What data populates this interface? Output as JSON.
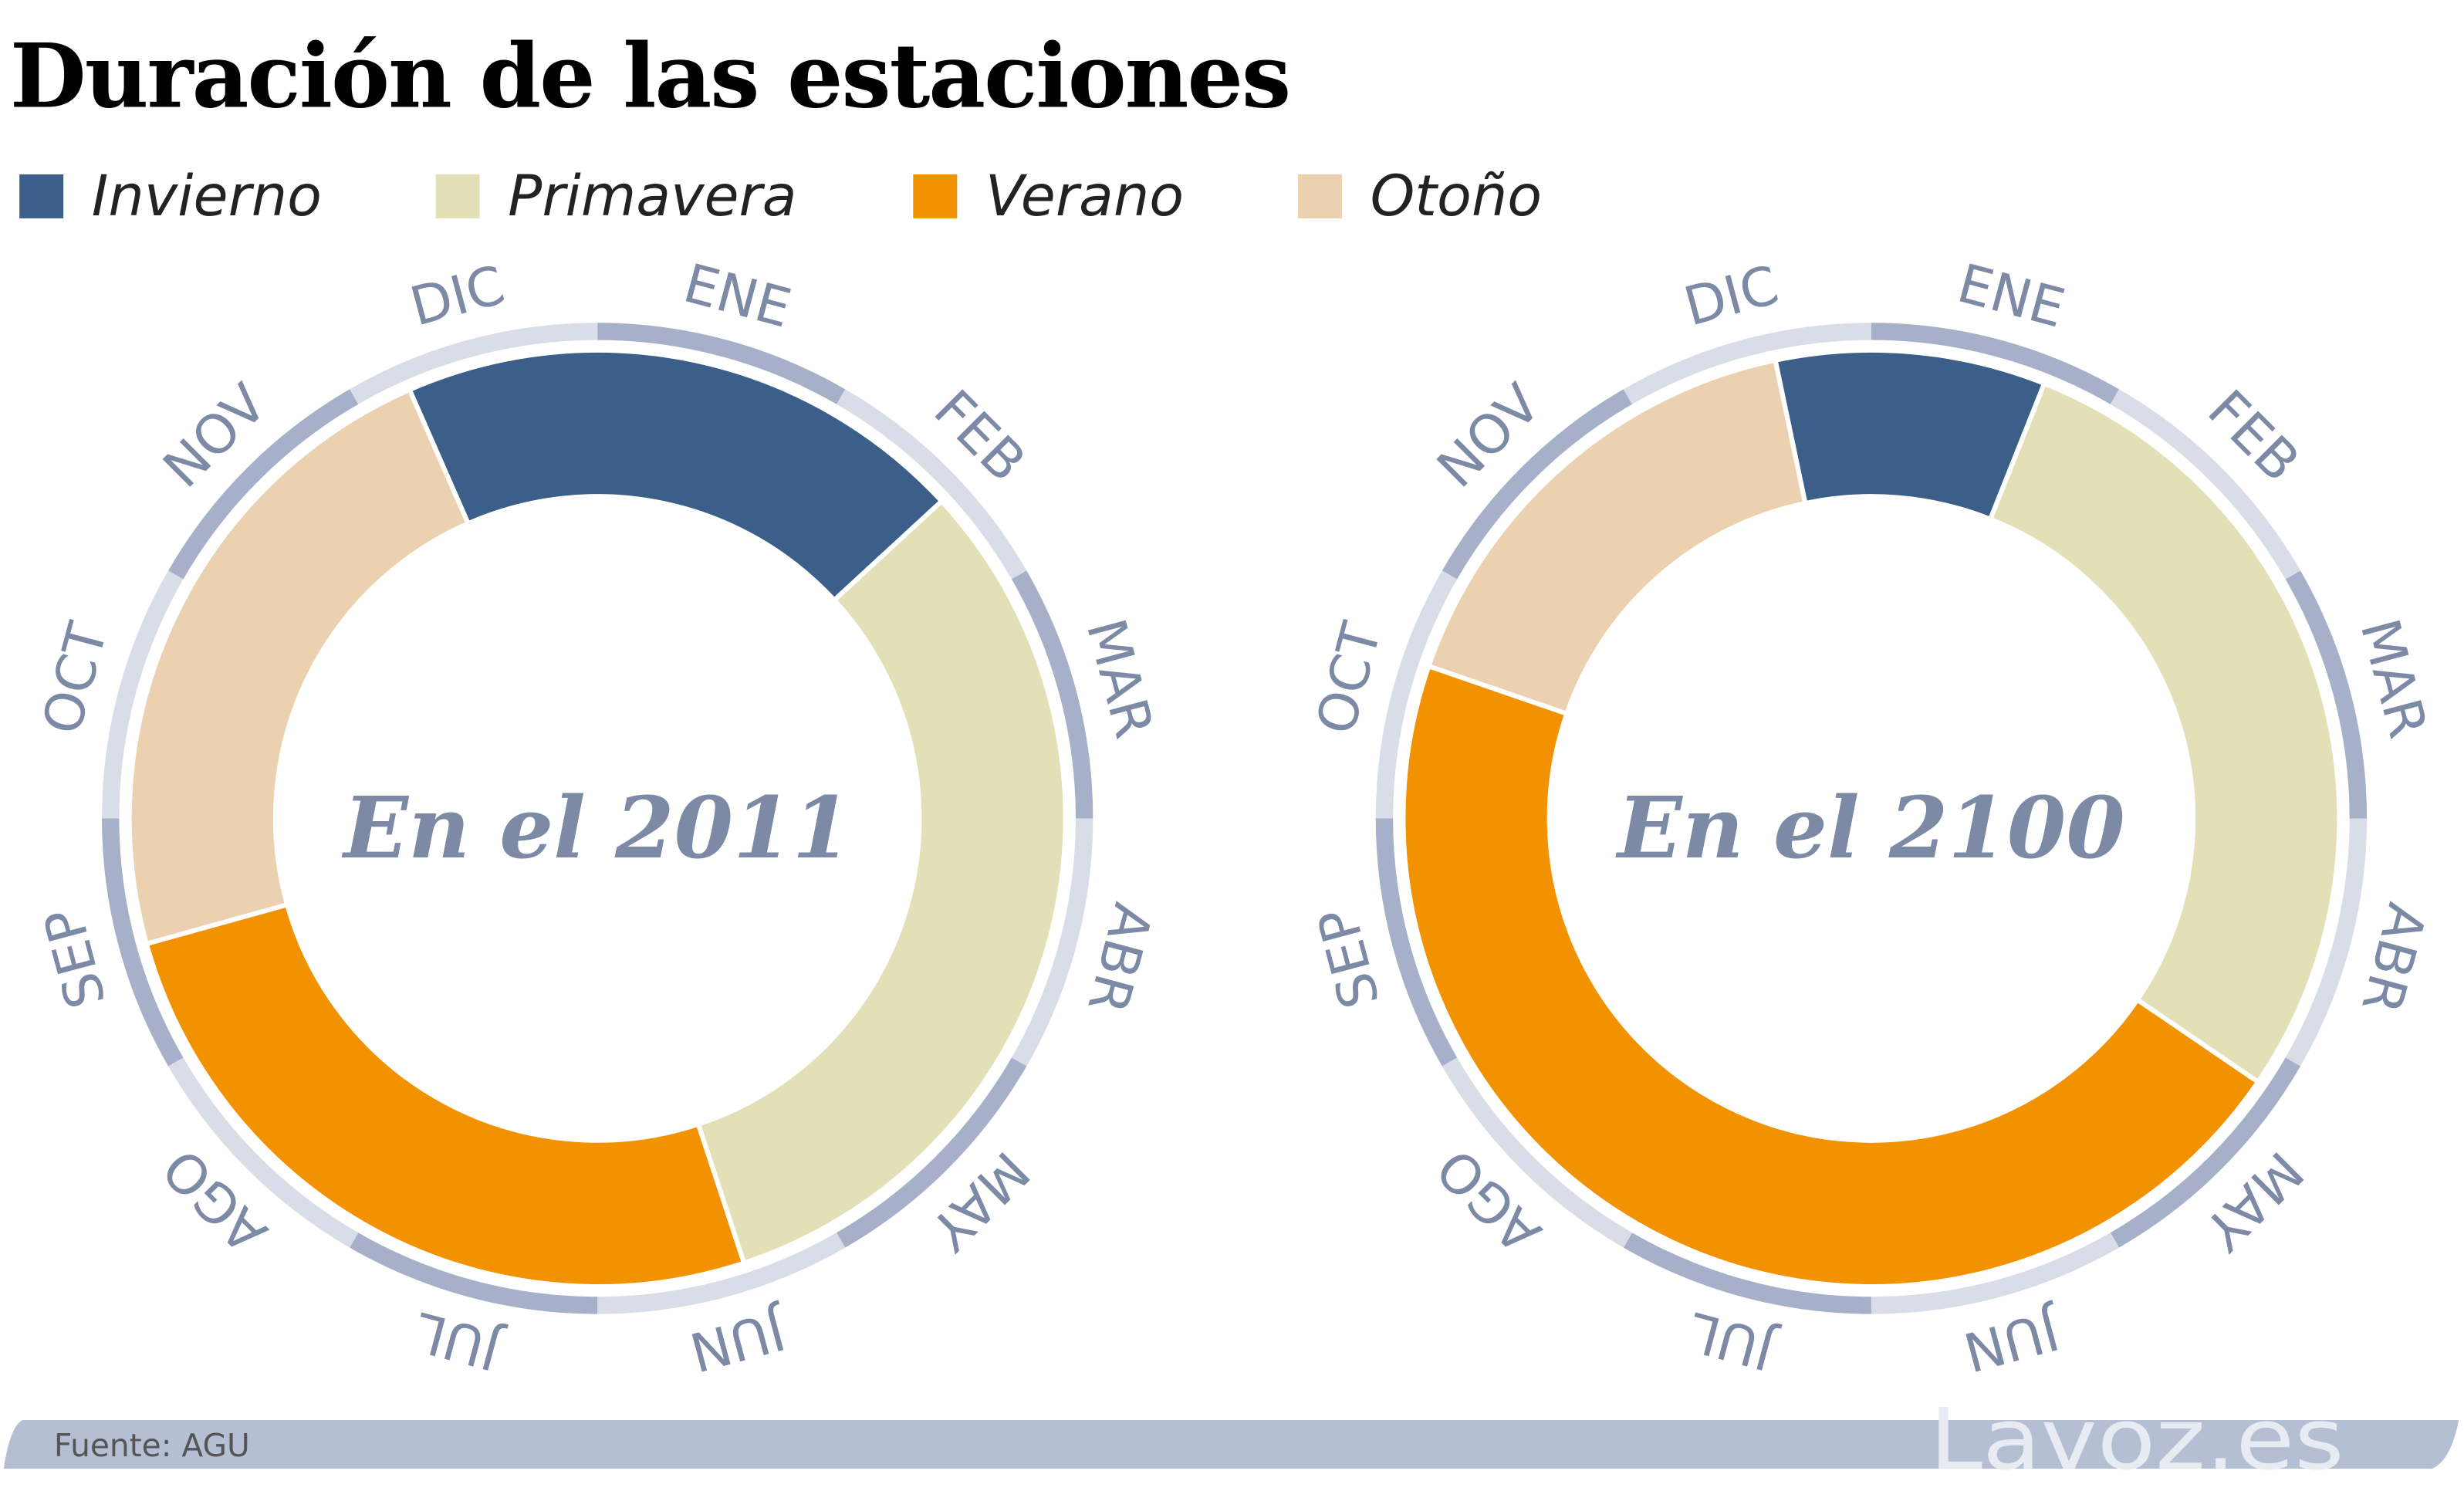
{
  "chart_data": {
    "type": "pie",
    "title": "Duración de las estaciones",
    "legend": [
      {
        "label": "Invierno",
        "color": "#3c5f8a"
      },
      {
        "label": "Primavera",
        "color": "#e3e0b8"
      },
      {
        "label": "Verano",
        "color": "#f29200"
      },
      {
        "label": "Otoño",
        "color": "#ebd1b0"
      }
    ],
    "legend_position": "top-left",
    "months": [
      "ENE",
      "FEB",
      "MAR",
      "ABR",
      "MAY",
      "JUN",
      "JUL",
      "AGO",
      "SEP",
      "OCT",
      "NOV",
      "DIC"
    ],
    "month_colors": [
      "#a6b1c9",
      "#d8dde8"
    ],
    "charts": [
      {
        "label": "En el 2011",
        "winter_start_day": -24,
        "durations_days": [
          72,
          116,
          94,
          83
        ]
      },
      {
        "label": "En el 2100",
        "winter_start_day": -12,
        "durations_days": [
          34,
          104,
          167,
          60
        ]
      }
    ]
  },
  "footer": {
    "source": "Fuente: AGU",
    "logo": "Lavoz.es"
  }
}
